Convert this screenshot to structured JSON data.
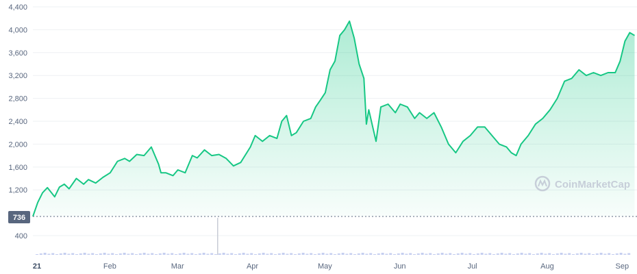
{
  "chart_data": {
    "type": "area",
    "y_ticks": [
      "4,400",
      "4,000",
      "3,600",
      "3,200",
      "2,800",
      "2,400",
      "2,000",
      "1,600",
      "1,200"
    ],
    "volume_tick": "400",
    "x_ticks": [
      "21",
      "Feb",
      "Mar",
      "Apr",
      "May",
      "Jun",
      "Jul",
      "Aug",
      "Sep"
    ],
    "ylim": [
      736,
      4400
    ],
    "start_badge": "736",
    "watermark": "CoinMarketCap",
    "colors": {
      "line": "#16c784",
      "fill_top": "#16c784",
      "grid": "#eef0f3",
      "axis_text": "#58667e",
      "badge_bg": "#58667e",
      "volume": "#c6cff0",
      "watermark": "#c3cad6"
    },
    "series": [
      {
        "x": [
          "2021-01-01",
          "2021-01-03",
          "2021-01-05",
          "2021-01-07",
          "2021-01-10",
          "2021-01-12",
          "2021-01-14",
          "2021-01-16",
          "2021-01-19",
          "2021-01-22",
          "2021-01-24",
          "2021-01-27",
          "2021-01-30",
          "2021-02-02",
          "2021-02-05",
          "2021-02-08",
          "2021-02-10",
          "2021-02-13",
          "2021-02-16",
          "2021-02-19",
          "2021-02-22",
          "2021-02-23",
          "2021-02-25",
          "2021-02-28",
          "2021-03-02",
          "2021-03-05",
          "2021-03-08",
          "2021-03-10",
          "2021-03-13",
          "2021-03-16",
          "2021-03-19",
          "2021-03-22",
          "2021-03-25",
          "2021-03-28",
          "2021-04-01",
          "2021-04-03",
          "2021-04-06",
          "2021-04-09",
          "2021-04-12",
          "2021-04-14",
          "2021-04-16",
          "2021-04-18",
          "2021-04-20",
          "2021-04-23",
          "2021-04-26",
          "2021-04-28",
          "2021-04-30",
          "2021-05-02",
          "2021-05-04",
          "2021-05-06",
          "2021-05-08",
          "2021-05-10",
          "2021-05-12",
          "2021-05-14",
          "2021-05-16",
          "2021-05-18",
          "2021-05-19",
          "2021-05-20",
          "2021-05-23",
          "2021-05-25",
          "2021-05-28",
          "2021-05-31",
          "2021-06-02",
          "2021-06-05",
          "2021-06-08",
          "2021-06-10",
          "2021-06-13",
          "2021-06-16",
          "2021-06-19",
          "2021-06-22",
          "2021-06-25",
          "2021-06-28",
          "2021-07-01",
          "2021-07-04",
          "2021-07-07",
          "2021-07-10",
          "2021-07-13",
          "2021-07-16",
          "2021-07-18",
          "2021-07-20",
          "2021-07-22",
          "2021-07-25",
          "2021-07-28",
          "2021-07-31",
          "2021-08-03",
          "2021-08-06",
          "2021-08-09",
          "2021-08-12",
          "2021-08-15",
          "2021-08-18",
          "2021-08-21",
          "2021-08-24",
          "2021-08-27",
          "2021-08-30",
          "2021-09-01",
          "2021-09-03",
          "2021-09-05",
          "2021-09-07"
        ],
        "values": [
          736,
          980,
          1150,
          1240,
          1080,
          1250,
          1300,
          1220,
          1400,
          1300,
          1380,
          1320,
          1420,
          1500,
          1700,
          1750,
          1700,
          1820,
          1800,
          1950,
          1650,
          1500,
          1500,
          1450,
          1550,
          1500,
          1800,
          1760,
          1900,
          1800,
          1820,
          1750,
          1620,
          1680,
          1950,
          2150,
          2050,
          2150,
          2100,
          2400,
          2500,
          2150,
          2200,
          2400,
          2450,
          2650,
          2770,
          2900,
          3300,
          3450,
          3900,
          4000,
          4150,
          3850,
          3400,
          3150,
          2350,
          2600,
          2050,
          2650,
          2700,
          2550,
          2700,
          2650,
          2450,
          2550,
          2450,
          2550,
          2300,
          2000,
          1850,
          2050,
          2150,
          2300,
          2300,
          2150,
          2000,
          1950,
          1850,
          1800,
          2000,
          2150,
          2350,
          2450,
          2600,
          2800,
          3100,
          3150,
          3300,
          3200,
          3250,
          3200,
          3250,
          3250,
          3450,
          3800,
          3950,
          3900
        ]
      }
    ]
  }
}
